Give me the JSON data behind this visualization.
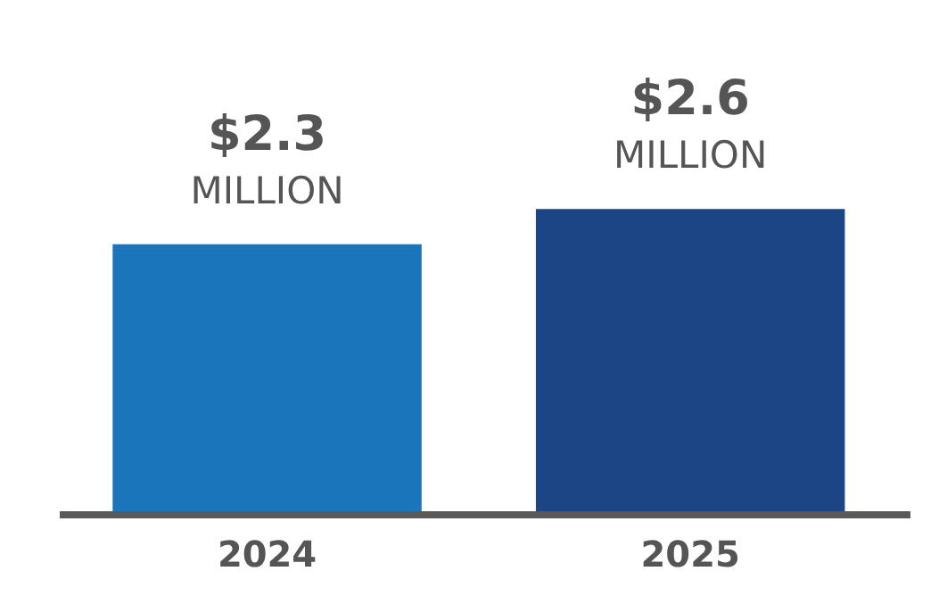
{
  "chart_data": {
    "type": "bar",
    "categories": [
      "2024",
      "2025"
    ],
    "values": [
      2.3,
      2.6
    ],
    "colors": [
      "#1a75bb",
      "#1b4585"
    ],
    "value_labels": [
      "$2.3 MILLION",
      "$2.6 MILLION"
    ]
  }
}
